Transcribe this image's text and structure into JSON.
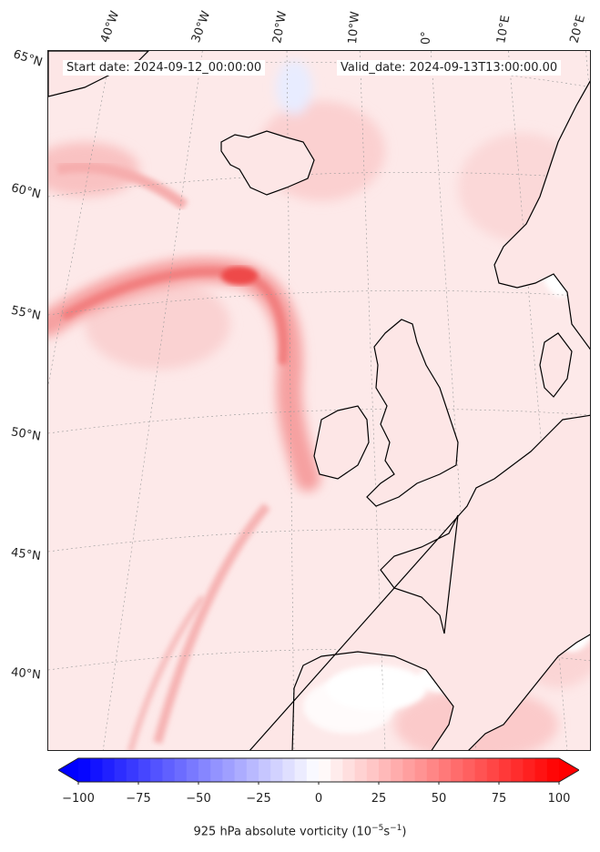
{
  "header": {
    "start_date": "Start date: 2024-09-12_00:00:00",
    "valid_date": "Valid_date: 2024-09-13T13:00:00.00"
  },
  "map": {
    "longitude_labels": [
      "40°W",
      "30°W",
      "20°W",
      "10°W",
      "0°",
      "10°E",
      "20°E"
    ],
    "latitude_labels": [
      "65°N",
      "60°N",
      "55°N",
      "50°N",
      "45°N",
      "40°N"
    ],
    "field_colors": {
      "neg_max": "#0000ff",
      "zero": "#ffffff",
      "pos_max": "#ff0000",
      "land": "#ffffff",
      "coast": "#000000"
    }
  },
  "colorbar": {
    "ticks": [
      "−100",
      "−75",
      "−50",
      "−25",
      "0",
      "25",
      "50",
      "75",
      "100"
    ],
    "tick_values": [
      -100,
      -75,
      -50,
      -25,
      0,
      25,
      50,
      75,
      100
    ],
    "range": [
      -100,
      100
    ],
    "label_main": "925 hPa absolute vorticity (10",
    "label_exp1": "−5",
    "label_mid": "s",
    "label_exp2": "−1",
    "label_end": ")"
  }
}
